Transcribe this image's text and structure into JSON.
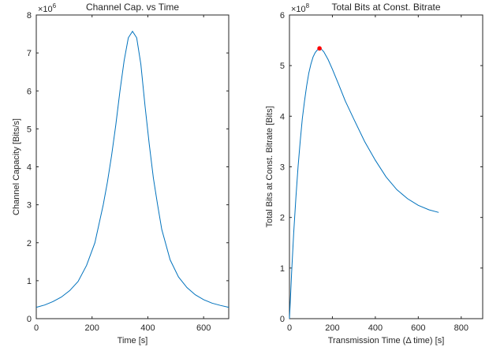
{
  "chart_data": [
    {
      "type": "line",
      "title": "Channel Cap. vs Time",
      "xlabel": "Time [s]",
      "ylabel": "Channel Capacity [Bits/s]",
      "xlim": [
        0,
        690
      ],
      "ylim": [
        0,
        8
      ],
      "y_exponent": "×10^6",
      "y_exponent_base": "×10",
      "y_exponent_power": "6",
      "xticks": [
        0,
        200,
        400,
        600
      ],
      "yticks": [
        0,
        1,
        2,
        3,
        4,
        5,
        6,
        7,
        8
      ],
      "line_color": "#0072BD",
      "series": [
        {
          "x": [
            0,
            30,
            60,
            90,
            120,
            150,
            180,
            210,
            240,
            255,
            270,
            285,
            300,
            315,
            330,
            345,
            360,
            375,
            390,
            405,
            420,
            435,
            450,
            480,
            510,
            540,
            570,
            600,
            630,
            660,
            690
          ],
          "y": [
            0.3,
            0.36,
            0.45,
            0.57,
            0.74,
            0.98,
            1.4,
            2.0,
            3.0,
            3.6,
            4.3,
            5.1,
            6.0,
            6.8,
            7.4,
            7.57,
            7.4,
            6.7,
            5.6,
            4.6,
            3.7,
            3.0,
            2.35,
            1.55,
            1.1,
            0.82,
            0.63,
            0.5,
            0.41,
            0.35,
            0.3
          ]
        }
      ]
    },
    {
      "type": "line",
      "title": "Total Bits at Const. Bitrate",
      "xlabel": "Transmission Time (Δ time) [s]",
      "ylabel": "Total Bits at Const. Bitrate [Bits]",
      "xlim": [
        0,
        900
      ],
      "ylim": [
        0,
        6
      ],
      "y_exponent": "×10^8",
      "y_exponent_base": "×10",
      "y_exponent_power": "8",
      "xticks": [
        0,
        200,
        400,
        600,
        800
      ],
      "yticks": [
        0,
        1,
        2,
        3,
        4,
        5,
        6
      ],
      "line_color": "#0072BD",
      "marker_color": "#FF0000",
      "max_point": {
        "x": 140,
        "y": 5.34
      },
      "series": [
        {
          "x": [
            0,
            5,
            10,
            20,
            30,
            40,
            50,
            60,
            70,
            80,
            90,
            100,
            110,
            120,
            130,
            140,
            150,
            160,
            180,
            200,
            230,
            260,
            300,
            350,
            400,
            450,
            500,
            550,
            600,
            650,
            695
          ],
          "y": [
            0.0,
            0.45,
            0.9,
            1.7,
            2.4,
            3.0,
            3.5,
            3.95,
            4.3,
            4.6,
            4.85,
            5.03,
            5.17,
            5.26,
            5.31,
            5.34,
            5.32,
            5.27,
            5.12,
            4.93,
            4.62,
            4.3,
            3.94,
            3.5,
            3.13,
            2.8,
            2.55,
            2.37,
            2.24,
            2.15,
            2.1
          ]
        }
      ]
    }
  ]
}
